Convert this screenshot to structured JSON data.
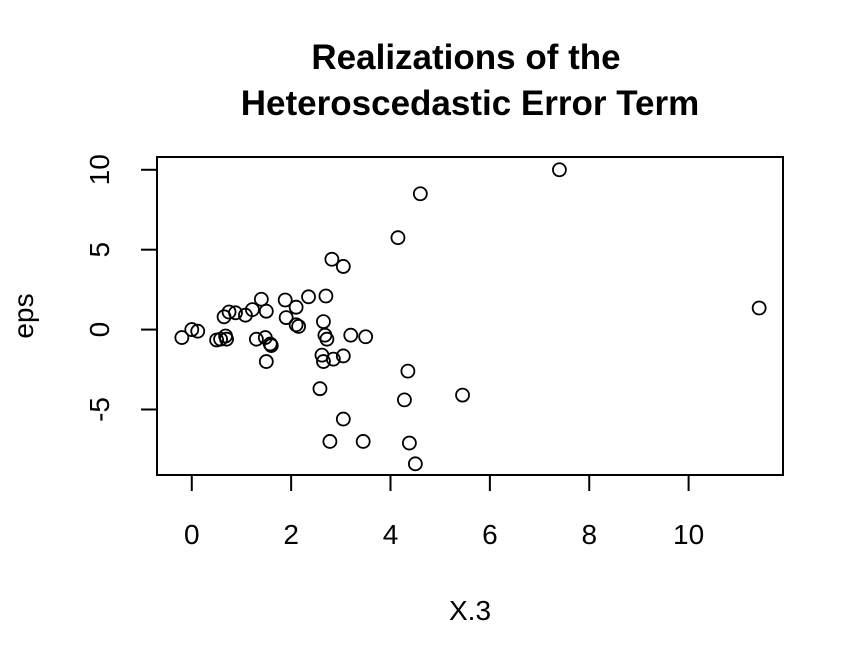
{
  "chart_data": {
    "type": "scatter",
    "title_lines": [
      "Realizations of the",
      "Heteroscedastic Error Term"
    ],
    "xlabel": "X.3",
    "ylabel": "eps",
    "xlim": [
      -0.7,
      11.9
    ],
    "ylim": [
      -9.1,
      10.8
    ],
    "x_ticks": [
      0,
      2,
      4,
      6,
      8,
      10
    ],
    "x_tick_labels": [
      "0",
      "2",
      "4",
      "6",
      "8",
      "10"
    ],
    "y_ticks": [
      -5,
      0,
      5,
      10
    ],
    "y_tick_labels": [
      "-5",
      "0",
      "5",
      "10"
    ],
    "grid": false,
    "marker": "open-circle",
    "points": [
      {
        "x": -0.2,
        "y": -0.5
      },
      {
        "x": 0.0,
        "y": 0.0
      },
      {
        "x": 0.12,
        "y": -0.1
      },
      {
        "x": 0.5,
        "y": -0.65
      },
      {
        "x": 0.58,
        "y": -0.6
      },
      {
        "x": 0.65,
        "y": 0.8
      },
      {
        "x": 0.68,
        "y": -0.4
      },
      {
        "x": 0.7,
        "y": -0.6
      },
      {
        "x": 0.75,
        "y": 1.1
      },
      {
        "x": 0.88,
        "y": 1.05
      },
      {
        "x": 1.08,
        "y": 0.9
      },
      {
        "x": 1.22,
        "y": 1.25
      },
      {
        "x": 1.3,
        "y": -0.6
      },
      {
        "x": 1.4,
        "y": 1.9
      },
      {
        "x": 1.48,
        "y": -0.5
      },
      {
        "x": 1.5,
        "y": 1.15
      },
      {
        "x": 1.5,
        "y": -2.0
      },
      {
        "x": 1.58,
        "y": -0.9
      },
      {
        "x": 1.6,
        "y": -1.0
      },
      {
        "x": 1.88,
        "y": 1.85
      },
      {
        "x": 1.9,
        "y": 0.75
      },
      {
        "x": 2.1,
        "y": 1.4
      },
      {
        "x": 2.1,
        "y": 0.3
      },
      {
        "x": 2.15,
        "y": 0.2
      },
      {
        "x": 2.35,
        "y": 2.05
      },
      {
        "x": 2.58,
        "y": -3.7
      },
      {
        "x": 2.62,
        "y": -1.6
      },
      {
        "x": 2.65,
        "y": -2.0
      },
      {
        "x": 2.65,
        "y": 0.5
      },
      {
        "x": 2.68,
        "y": -0.35
      },
      {
        "x": 2.7,
        "y": 2.1
      },
      {
        "x": 2.72,
        "y": -0.6
      },
      {
        "x": 2.78,
        "y": -7.0
      },
      {
        "x": 2.82,
        "y": 4.4
      },
      {
        "x": 2.85,
        "y": -1.85
      },
      {
        "x": 3.05,
        "y": -5.6
      },
      {
        "x": 3.05,
        "y": 3.95
      },
      {
        "x": 3.05,
        "y": -1.65
      },
      {
        "x": 3.2,
        "y": -0.35
      },
      {
        "x": 3.45,
        "y": -7.0
      },
      {
        "x": 3.5,
        "y": -0.45
      },
      {
        "x": 4.15,
        "y": 5.75
      },
      {
        "x": 4.28,
        "y": -4.4
      },
      {
        "x": 4.35,
        "y": -2.6
      },
      {
        "x": 4.38,
        "y": -7.1
      },
      {
        "x": 4.5,
        "y": -8.4
      },
      {
        "x": 4.6,
        "y": 8.5
      },
      {
        "x": 5.45,
        "y": -4.1
      },
      {
        "x": 7.4,
        "y": 10.0
      },
      {
        "x": 11.42,
        "y": 1.35
      }
    ]
  }
}
